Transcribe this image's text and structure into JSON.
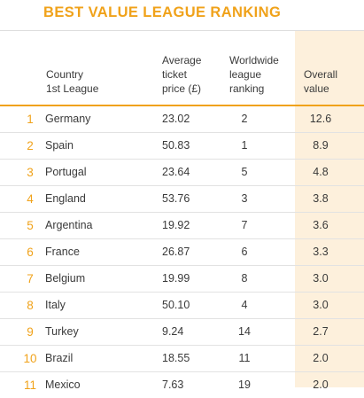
{
  "title": "BEST VALUE LEAGUE RANKING",
  "headers": {
    "country": "Country\n1st League",
    "price": "Average\nticket\nprice (£)",
    "world": "Worldwide\nleague\nranking",
    "value": "Overall\nvalue"
  },
  "rows": [
    {
      "rank": "1",
      "country": "Germany",
      "price": "23.02",
      "world": "2",
      "value": "12.6"
    },
    {
      "rank": "2",
      "country": "Spain",
      "price": "50.83",
      "world": "1",
      "value": "8.9"
    },
    {
      "rank": "3",
      "country": "Portugal",
      "price": "23.64",
      "world": "5",
      "value": "4.8"
    },
    {
      "rank": "4",
      "country": "England",
      "price": "53.76",
      "world": "3",
      "value": "3.8"
    },
    {
      "rank": "5",
      "country": "Argentina",
      "price": "19.92",
      "world": "7",
      "value": "3.6"
    },
    {
      "rank": "6",
      "country": "France",
      "price": "26.87",
      "world": "6",
      "value": "3.3"
    },
    {
      "rank": "7",
      "country": "Belgium",
      "price": "19.99",
      "world": "8",
      "value": "3.0"
    },
    {
      "rank": "8",
      "country": "Italy",
      "price": "50.10",
      "world": "4",
      "value": "3.0"
    },
    {
      "rank": "9",
      "country": "Turkey",
      "price": "9.24",
      "world": "14",
      "value": "2.7"
    },
    {
      "rank": "10",
      "country": "Brazil",
      "price": "18.55",
      "world": "11",
      "value": "2.0"
    },
    {
      "rank": "11",
      "country": "Mexico",
      "price": "7.63",
      "world": "19",
      "value": "2.0"
    }
  ],
  "colors": {
    "accent": "#f0a21a",
    "value_column_bg": "#fdf0dc"
  }
}
